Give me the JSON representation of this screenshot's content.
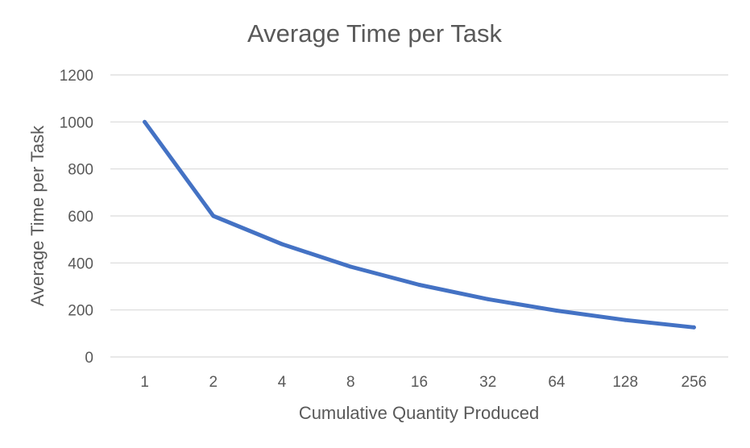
{
  "chart_data": {
    "type": "line",
    "title": "Average Time per Task",
    "xlabel": "Cumulative Quantity Produced",
    "ylabel": "Average Time per Task",
    "categories": [
      "1",
      "2",
      "4",
      "8",
      "16",
      "32",
      "64",
      "128",
      "256"
    ],
    "series": [
      {
        "values": [
          1000,
          600,
          480,
          384,
          307,
          246,
          197,
          157,
          126
        ]
      }
    ],
    "ylim": [
      0,
      1200
    ],
    "yticks": [
      "0",
      "200",
      "400",
      "600",
      "800",
      "1000",
      "1200"
    ],
    "grid": true,
    "legend": "none",
    "colors": {
      "series": "#4472C4",
      "grid": "#D9D9D9",
      "text": "#595959"
    }
  }
}
